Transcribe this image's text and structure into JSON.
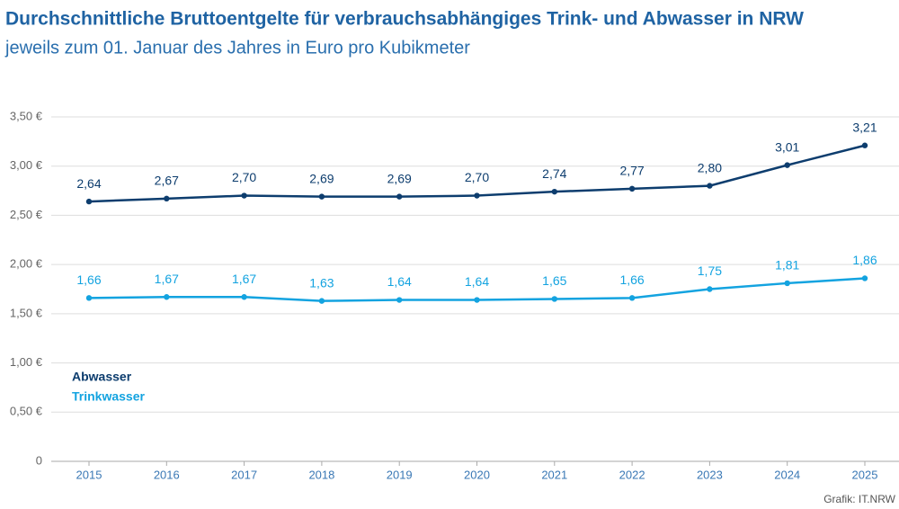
{
  "chart_data": {
    "type": "line",
    "title": "Durchschnittliche Bruttoentgelte für verbrauchsabhängiges Trink- und Abwasser in NRW",
    "subtitle": "jeweils zum 01. Januar des Jahres in Euro pro Kubikmeter",
    "source": "Grafik: IT.NRW",
    "categories": [
      "2015",
      "2016",
      "2017",
      "2018",
      "2019",
      "2020",
      "2021",
      "2022",
      "2023",
      "2024",
      "2025"
    ],
    "series": [
      {
        "name": "Abwasser",
        "color": "#0d3d6e",
        "values": [
          2.64,
          2.67,
          2.7,
          2.69,
          2.69,
          2.7,
          2.74,
          2.77,
          2.8,
          3.01,
          3.21
        ],
        "value_labels": [
          "2,64",
          "2,67",
          "2,70",
          "2,69",
          "2,69",
          "2,70",
          "2,74",
          "2,77",
          "2,80",
          "3,01",
          "3,21"
        ]
      },
      {
        "name": "Trinkwasser",
        "color": "#13a3e0",
        "values": [
          1.66,
          1.67,
          1.67,
          1.63,
          1.64,
          1.64,
          1.65,
          1.66,
          1.75,
          1.81,
          1.86
        ],
        "value_labels": [
          "1,66",
          "1,67",
          "1,67",
          "1,63",
          "1,64",
          "1,64",
          "1,65",
          "1,66",
          "1,75",
          "1,81",
          "1,86"
        ]
      }
    ],
    "ylim": [
      0,
      3.5
    ],
    "yticks": [
      0,
      {
        "value": 0.5,
        "label": "0,50 €"
      },
      {
        "value": 1,
        "label": "1,00 €"
      },
      {
        "value": 1.5,
        "label": "1,50 €"
      },
      {
        "value": 2,
        "label": "2,00 €"
      },
      {
        "value": 2.5,
        "label": "2,50 €"
      },
      {
        "value": 3,
        "label": "3,00 €"
      },
      {
        "value": 3.5,
        "label": "3,50 €"
      }
    ],
    "grid": true
  }
}
